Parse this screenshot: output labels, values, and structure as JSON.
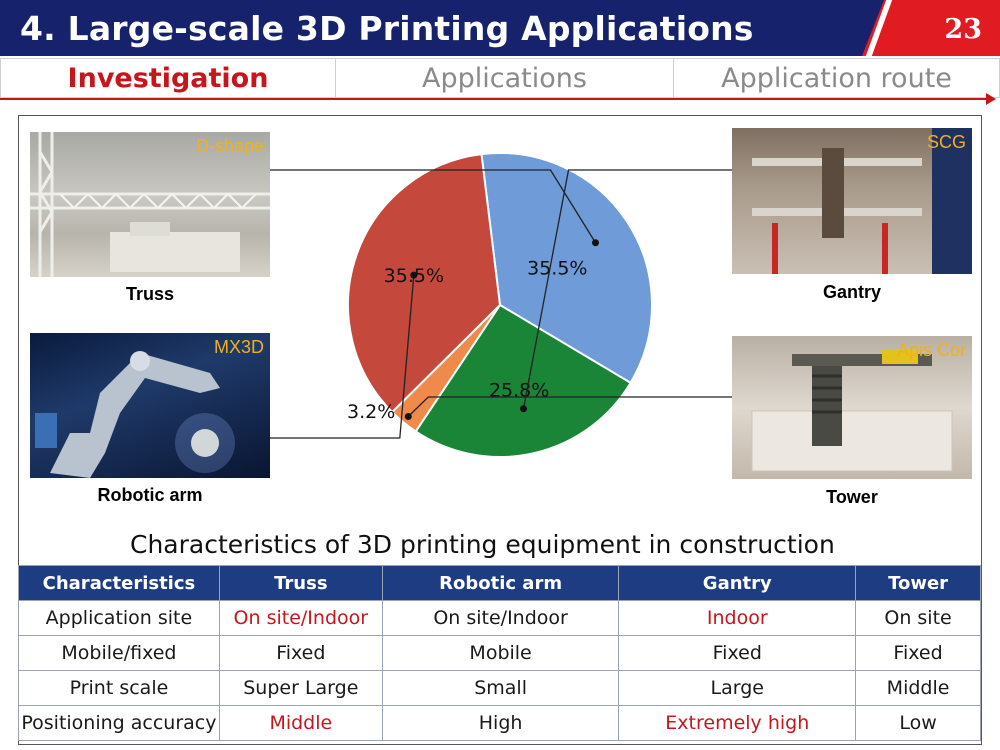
{
  "header": {
    "title": "4. Large-scale 3D Printing Applications",
    "page_number": "23"
  },
  "tabs": [
    {
      "label": "Investigation",
      "active": true
    },
    {
      "label": "Applications",
      "active": false
    },
    {
      "label": "Application route",
      "active": false
    }
  ],
  "photos": {
    "truss": {
      "tag": "D-shape",
      "caption": "Truss"
    },
    "robotic": {
      "tag": "MX3D",
      "caption": "Robotic arm"
    },
    "gantry": {
      "tag": "SCG",
      "caption": "Gantry"
    },
    "tower": {
      "tag": "Apis Cor",
      "caption": "Tower"
    }
  },
  "chart_data": {
    "type": "pie",
    "slices": [
      {
        "name": "Truss",
        "value": 35.5,
        "label": "35.5%",
        "color": "#6f9bd8"
      },
      {
        "name": "Gantry",
        "value": 25.8,
        "label": "25.8%",
        "color": "#1a8437"
      },
      {
        "name": "Tower",
        "value": 3.2,
        "label": "3.2%",
        "color": "#f08a4b"
      },
      {
        "name": "Robotic arm",
        "value": 35.5,
        "label": "35.5%",
        "color": "#c4483c"
      }
    ]
  },
  "table": {
    "title": "Characteristics of 3D printing equipment in construction",
    "headers": [
      "Characteristics",
      "Truss",
      "Robotic arm",
      "Gantry",
      "Tower"
    ],
    "rows": [
      [
        "Application site",
        "On site/Indoor",
        "On site/Indoor",
        "Indoor",
        "On site"
      ],
      [
        "Mobile/fixed",
        "Fixed",
        "Mobile",
        "Fixed",
        "Fixed"
      ],
      [
        "Print scale",
        "Super Large",
        "Small",
        "Large",
        "Middle"
      ],
      [
        "Positioning accuracy",
        "Middle",
        "High",
        "Extremely high",
        "Low"
      ]
    ],
    "highlight_color": "#c8151c"
  }
}
